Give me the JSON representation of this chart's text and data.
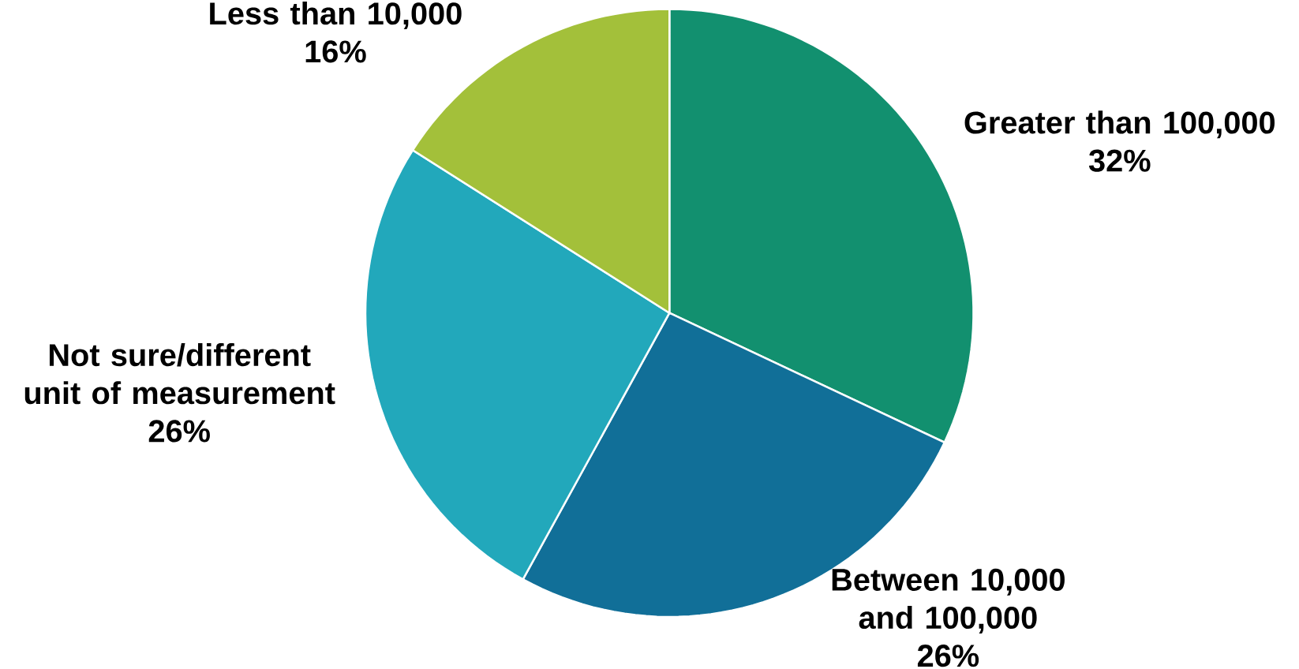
{
  "chart_data": {
    "type": "pie",
    "categories": [
      "Greater than 100,000",
      "Between 10,000 and 100,000",
      "Not sure/different unit of measurement",
      "Less than 10,000"
    ],
    "values": [
      32,
      26,
      26,
      16
    ],
    "value_labels": [
      "32%",
      "26%",
      "26%",
      "16%"
    ],
    "colors": [
      "#12906f",
      "#116f98",
      "#22a8bb",
      "#a3c03a"
    ]
  }
}
